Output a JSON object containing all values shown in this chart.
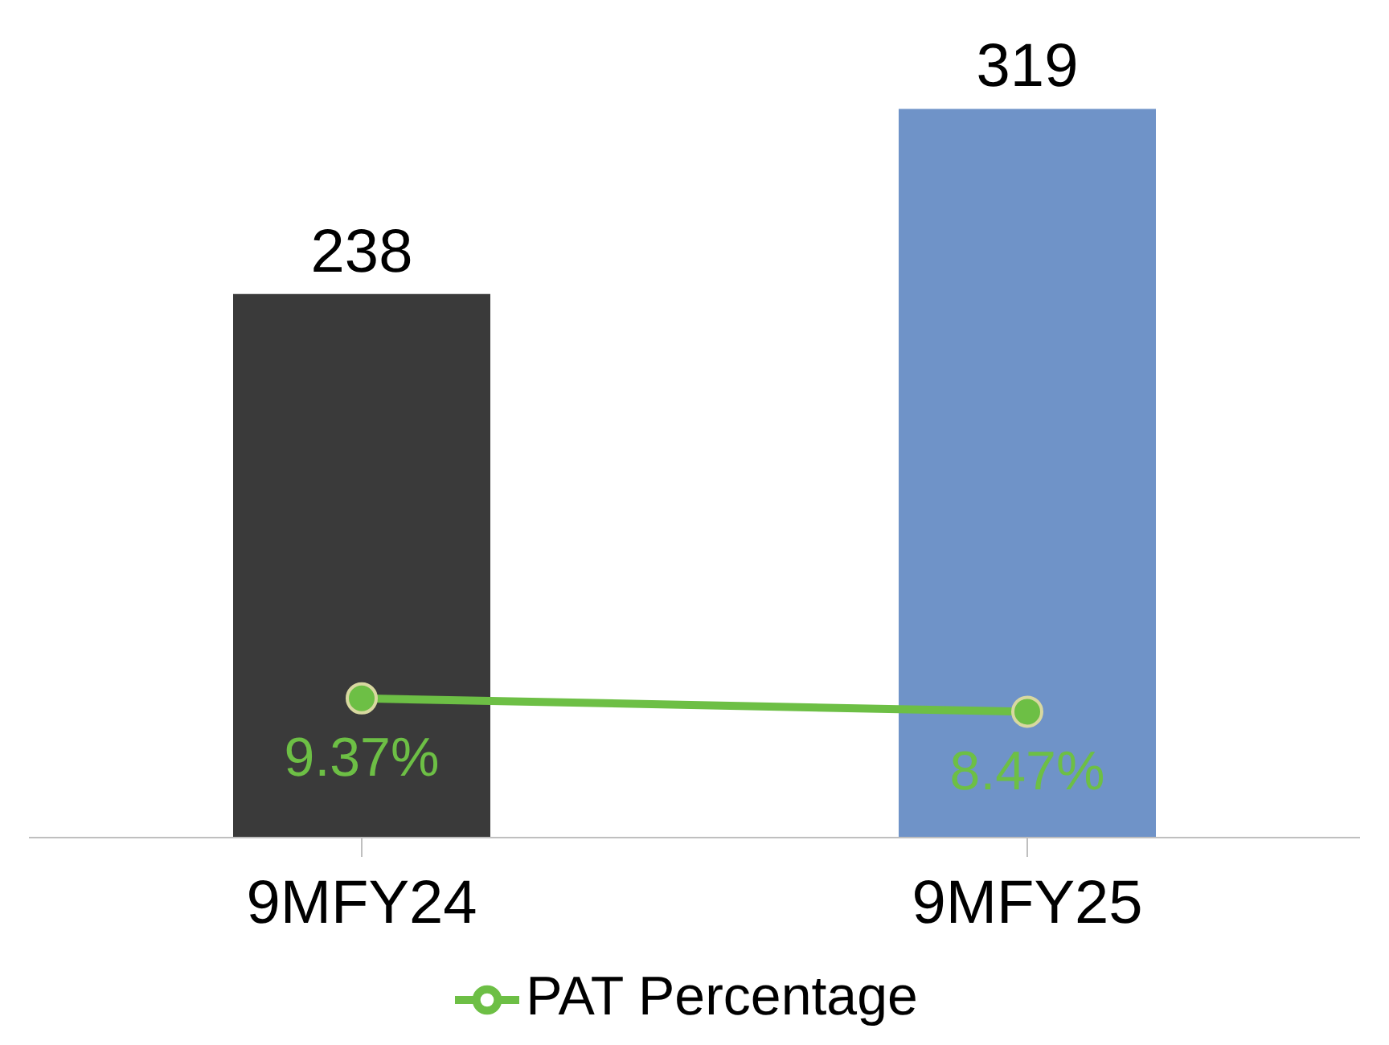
{
  "chart_data": {
    "type": "bar",
    "categories": [
      "9MFY24",
      "9MFY25"
    ],
    "series": [
      {
        "colors": [
          "#3a3a3a",
          "#6f93c8"
        ],
        "values": [
          238,
          319
        ]
      },
      {
        "type": "line",
        "name": "PAT Percentage",
        "color": "#6dbf45",
        "axis": "y2",
        "values": [
          9.37,
          8.47
        ],
        "value_labels": [
          "9.37%",
          "8.47%"
        ]
      }
    ],
    "data_labels": true,
    "legend": "bottom",
    "marker": "circle",
    "tick_labels": "x"
  }
}
